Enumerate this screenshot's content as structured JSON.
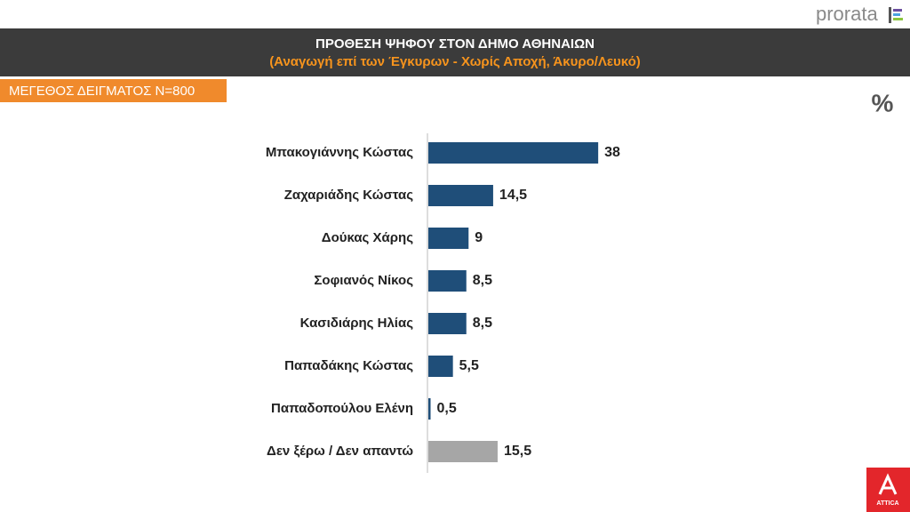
{
  "chart_data": {
    "type": "hbar",
    "title": "ΠΡΟΘΕΣΗ ΨΗΦΟΥ ΣΤΟΝ ΔΗΜΟ ΑΘΗΝΑΙΩΝ",
    "subtitle": "(Αναγωγή επί των Έγκυρων - Χωρίς Αποχή, Άκυρο/Λευκό)",
    "sample_size": "ΜΕΓΕΘΟΣ ΔΕΙΓΜΑΤΟΣ N=800",
    "unit": "%",
    "categories": [
      "Μπακογιάννης Κώστας",
      "Ζαχαριάδης Κώστας",
      "Δούκας Χάρης",
      "Σοφιανός Νίκος",
      "Κασιδιάρης Ηλίας",
      "Παπαδάκης Κώστας",
      "Παπαδοπούλου Ελένη",
      "Δεν ξέρω / Δεν απαντώ"
    ],
    "values": [
      38,
      14.5,
      9,
      8.5,
      8.5,
      5.5,
      0.5,
      15.5
    ],
    "value_labels": [
      "38",
      "14,5",
      "9",
      "8,5",
      "8,5",
      "5,5",
      "0,5",
      "15,5"
    ],
    "colors": [
      "#1f4e79",
      "#1f4e79",
      "#1f4e79",
      "#1f4e79",
      "#1f4e79",
      "#1f4e79",
      "#1f4e79",
      "#a6a6a6"
    ]
  },
  "logos": {
    "pollster": "prorata",
    "broadcaster": "ATTICA"
  }
}
